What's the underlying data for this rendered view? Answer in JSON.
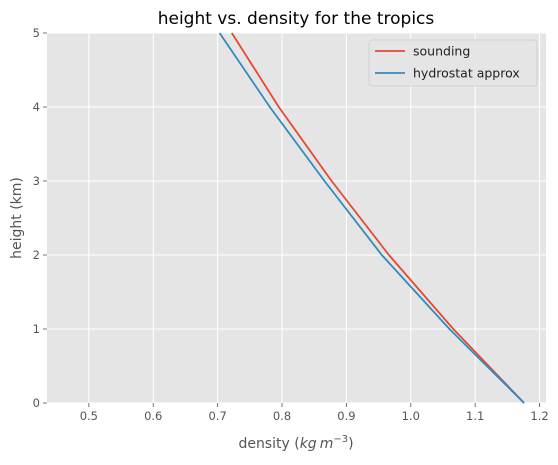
{
  "chart_data": {
    "type": "line",
    "title": "height vs. density for the tropics",
    "xlabel": "density (kg m⁻³)",
    "xlabel_parts": {
      "pre": "density (",
      "kg": "kg",
      "m": "m",
      "exp": "−3",
      "post": ")"
    },
    "ylabel": "height (km)",
    "xlim": [
      0.435,
      1.21
    ],
    "ylim": [
      0,
      5
    ],
    "xticks": [
      "0.5",
      "0.6",
      "0.7",
      "0.8",
      "0.9",
      "1.0",
      "1.1",
      "1.2"
    ],
    "yticks": [
      "0",
      "1",
      "2",
      "3",
      "4",
      "5"
    ],
    "grid": true,
    "legend": "top-right",
    "series": [
      {
        "name": "sounding",
        "color": "#E24A33",
        "x": [
          1.176,
          1.066,
          0.966,
          0.877,
          0.795,
          0.722
        ],
        "y": [
          0,
          1,
          2,
          3,
          4,
          5
        ]
      },
      {
        "name": "hydrostat approx",
        "color": "#348ABD",
        "x": [
          1.176,
          1.06,
          0.955,
          0.866,
          0.781,
          0.703
        ],
        "y": [
          0,
          1,
          2,
          3,
          4,
          5
        ]
      }
    ]
  }
}
